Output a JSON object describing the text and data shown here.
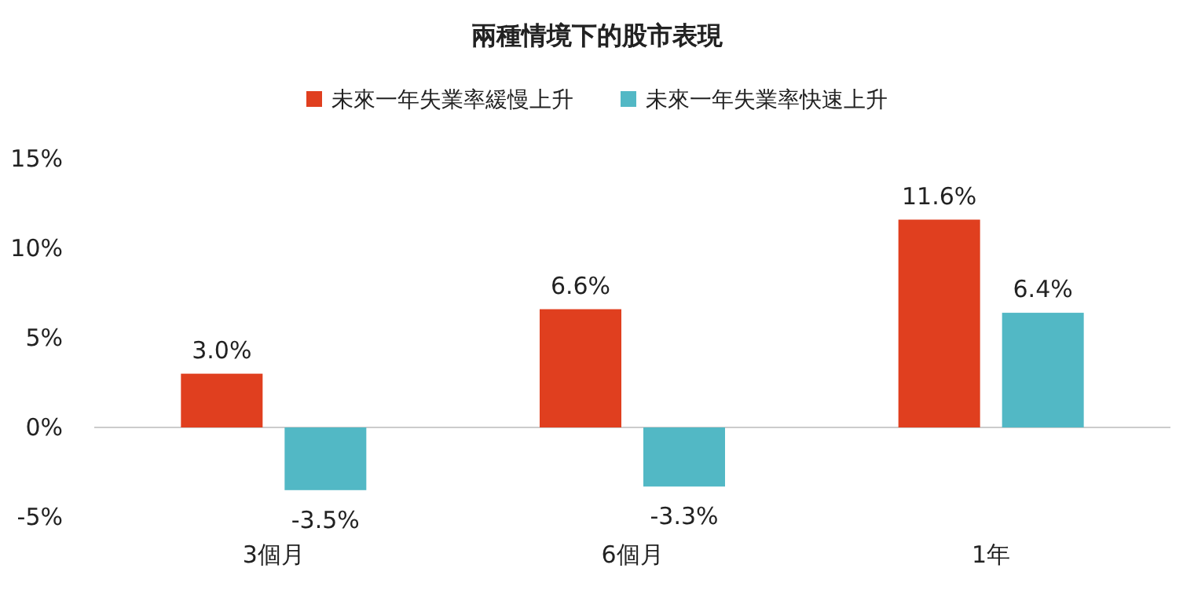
{
  "chart_data": {
    "type": "bar",
    "title": "兩種情境下的股市表現",
    "categories": [
      "3個月",
      "6個月",
      "1年"
    ],
    "series": [
      {
        "name": "未來一年失業率緩慢上升",
        "color": "#e03f1f",
        "values": [
          3.0,
          6.6,
          11.6
        ],
        "value_labels": [
          "3.0%",
          "6.6%",
          "11.6%"
        ]
      },
      {
        "name": "未來一年失業率快速上升",
        "color": "#52b8c5",
        "values": [
          -3.5,
          -3.3,
          6.4
        ],
        "value_labels": [
          "-3.5%",
          "-3.3%",
          "6.4%"
        ]
      }
    ],
    "ylim": [
      -5,
      15
    ],
    "yticks": [
      {
        "value": -5,
        "label": "-5%"
      },
      {
        "value": 0,
        "label": "0%"
      },
      {
        "value": 5,
        "label": "5%"
      },
      {
        "value": 10,
        "label": "10%"
      },
      {
        "value": 15,
        "label": "15%"
      }
    ],
    "legend": "top"
  }
}
